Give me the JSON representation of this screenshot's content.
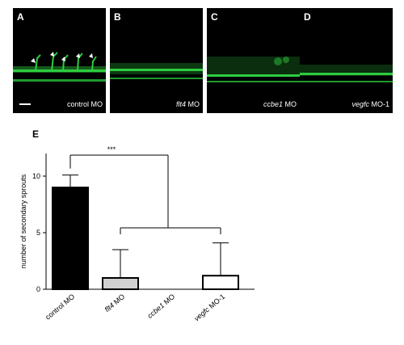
{
  "panels": [
    {
      "letter": "A",
      "gene": "",
      "suffix": "control MO"
    },
    {
      "letter": "B",
      "gene": "flt4",
      "suffix": " MO"
    },
    {
      "letter": "C",
      "gene": "ccbe1",
      "suffix": " MO"
    },
    {
      "letter": "D",
      "gene": "vegfc",
      "suffix": " MO-1"
    }
  ],
  "colors": {
    "fluorescence": "#2ecc40",
    "background": "#000000"
  },
  "chart_data": {
    "type": "bar",
    "panel_label": "E",
    "categories": [
      "control MO",
      "flt4 MO",
      "ccbe1 MO",
      "vegfc MO-1"
    ],
    "category_italic_parts": [
      "",
      "flt4",
      "ccbe1",
      "vegfc"
    ],
    "values": [
      9.0,
      1.0,
      0.0,
      1.2
    ],
    "errors": [
      1.1,
      2.5,
      0.0,
      2.9
    ],
    "bar_fills": [
      "#000000",
      "#d0d0d0",
      "#ffffff",
      "#ffffff"
    ],
    "ylabel": "number of secondary sprouts",
    "ylim": [
      0,
      12
    ],
    "yticks": [
      0,
      5,
      10
    ],
    "significance": "***"
  }
}
